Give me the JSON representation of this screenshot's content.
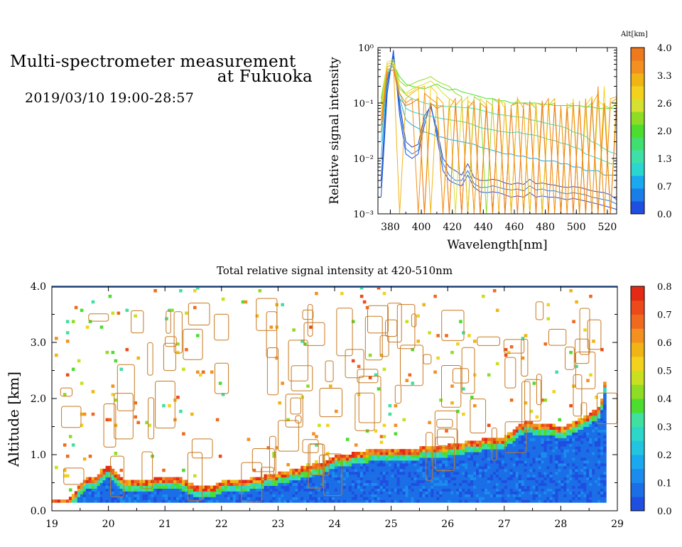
{
  "header": {
    "title_line1": "Multi-spectrometer measurement",
    "title_line2": "at Fukuoka",
    "datetime": "2019/03/10 19:00-28:57"
  },
  "chart_data": [
    {
      "type": "line",
      "xlabel": "Wavelength[nm]",
      "ylabel": "Relative signal intensity",
      "x_ticks": [
        "380",
        "400",
        "420",
        "440",
        "460",
        "480",
        "500",
        "520"
      ],
      "y_ticks": [
        "10⁻³",
        "10⁻²",
        "10⁻¹",
        "10⁰"
      ],
      "xlim": [
        372,
        526
      ],
      "ylim": [
        0.001,
        1.0
      ],
      "y_scale": "log",
      "colorbar": {
        "title": "Alt[km]",
        "ticks": [
          "0.0",
          "0.7",
          "1.3",
          "2.0",
          "2.6",
          "3.3",
          "4.0"
        ],
        "colors": [
          "#1f4fe0",
          "#1b7ee8",
          "#1aa9ef",
          "#2cd6d0",
          "#3fe0a8",
          "#3fe070",
          "#4cdd2e",
          "#8fdc24",
          "#d6e030",
          "#f2d21c",
          "#f0b414",
          "#f39020",
          "#ef7a1e"
        ]
      },
      "x": [
        374,
        378,
        382,
        386,
        390,
        394,
        398,
        402,
        406,
        410,
        414,
        418,
        422,
        426,
        430,
        434,
        438,
        442,
        446,
        450,
        454,
        458,
        462,
        466,
        470,
        474,
        478,
        482,
        486,
        490,
        494,
        498,
        502,
        506,
        510,
        514,
        518,
        522,
        526
      ],
      "series": [
        {
          "color": "#1f4fe0",
          "values": [
            0.002,
            0.15,
            0.9,
            0.06,
            0.012,
            0.01,
            0.012,
            0.04,
            0.1,
            0.025,
            0.006,
            0.004,
            0.0035,
            0.0032,
            0.005,
            0.003,
            0.0025,
            0.0024,
            0.0025,
            0.0024,
            0.0022,
            0.002,
            0.0021,
            0.002,
            0.0024,
            0.002,
            0.0021,
            0.002,
            0.002,
            0.0019,
            0.0018,
            0.0019,
            0.0018,
            0.0017,
            0.0016,
            0.0015,
            0.0014,
            0.0013,
            0.0012
          ]
        },
        {
          "color": "#1b7ee8",
          "values": [
            0.003,
            0.2,
            0.8,
            0.08,
            0.015,
            0.012,
            0.014,
            0.05,
            0.09,
            0.03,
            0.008,
            0.005,
            0.004,
            0.004,
            0.006,
            0.0035,
            0.003,
            0.003,
            0.0032,
            0.003,
            0.0028,
            0.0027,
            0.0028,
            0.0026,
            0.0032,
            0.0027,
            0.0028,
            0.0026,
            0.0026,
            0.0024,
            0.0023,
            0.0024,
            0.0023,
            0.0022,
            0.002,
            0.0019,
            0.0018,
            0.0017,
            0.0015
          ]
        },
        {
          "color": "#2a4bb8",
          "values": [
            0.004,
            0.25,
            0.7,
            0.1,
            0.02,
            0.016,
            0.018,
            0.06,
            0.085,
            0.035,
            0.01,
            0.007,
            0.006,
            0.005,
            0.008,
            0.0045,
            0.004,
            0.004,
            0.0042,
            0.004,
            0.0036,
            0.0034,
            0.0036,
            0.0034,
            0.0042,
            0.0035,
            0.0036,
            0.0034,
            0.0033,
            0.0031,
            0.003,
            0.0031,
            0.003,
            0.0028,
            0.0026,
            0.0025,
            0.0024,
            0.0022,
            0.0018
          ]
        },
        {
          "color": "#1aa9ef",
          "values": [
            0.01,
            0.3,
            0.6,
            0.12,
            0.05,
            0.04,
            0.035,
            0.03,
            0.028,
            0.025,
            0.024,
            0.022,
            0.021,
            0.02,
            0.019,
            0.018,
            0.016,
            0.015,
            0.014,
            0.013,
            0.012,
            0.012,
            0.011,
            0.011,
            0.01,
            0.01,
            0.009,
            0.009,
            0.009,
            0.008,
            0.008,
            0.007,
            0.007,
            0.006,
            0.006,
            0.006,
            0.005,
            0.005,
            0.005
          ]
        },
        {
          "color": "#2cd6d0",
          "values": [
            0.02,
            0.35,
            0.5,
            0.15,
            0.08,
            0.07,
            0.065,
            0.06,
            0.058,
            0.055,
            0.052,
            0.05,
            0.048,
            0.046,
            0.044,
            0.04,
            0.036,
            0.034,
            0.033,
            0.031,
            0.03,
            0.029,
            0.03,
            0.028,
            0.027,
            0.026,
            0.024,
            0.022,
            0.021,
            0.019,
            0.018,
            0.016,
            0.015,
            0.012,
            0.011,
            0.01,
            0.009,
            0.008,
            0.008
          ]
        },
        {
          "color": "#3fe0a8",
          "values": [
            0.05,
            0.4,
            0.45,
            0.2,
            0.14,
            0.12,
            0.11,
            0.1,
            0.095,
            0.09,
            0.088,
            0.086,
            0.085,
            0.083,
            0.082,
            0.08,
            0.075,
            0.07,
            0.065,
            0.062,
            0.06,
            0.058,
            0.056,
            0.055,
            0.05,
            0.048,
            0.045,
            0.042,
            0.04,
            0.038,
            0.035,
            0.03,
            0.028,
            0.025,
            0.02,
            0.018,
            0.015,
            0.013,
            0.012
          ]
        },
        {
          "color": "#4cdd2e",
          "values": [
            0.1,
            0.45,
            0.5,
            0.3,
            0.22,
            0.2,
            0.19,
            0.18,
            0.2,
            0.22,
            0.19,
            0.17,
            0.18,
            0.16,
            0.15,
            0.14,
            0.13,
            0.12,
            0.12,
            0.11,
            0.11,
            0.1,
            0.1,
            0.1,
            0.1,
            0.1,
            0.095,
            0.095,
            0.09,
            0.09,
            0.09,
            0.09,
            0.09,
            0.085,
            0.085,
            0.08,
            0.08,
            0.08,
            0.08
          ]
        },
        {
          "color": "#8fdc24",
          "values": [
            0.12,
            0.5,
            0.55,
            0.25,
            0.2,
            0.22,
            0.25,
            0.27,
            0.3,
            0.25,
            0.22,
            0.2,
            0.15,
            0.13,
            0.001,
            0.13,
            0.11,
            0.001,
            0.12,
            0.1,
            0.001,
            0.09,
            0.11,
            0.001,
            0.1,
            0.08,
            0.001,
            0.09,
            0.1,
            0.001,
            0.08,
            0.09,
            0.001,
            0.08,
            0.1,
            0.001,
            0.09,
            0.08,
            0.1
          ]
        },
        {
          "color": "#d6e030",
          "values": [
            0.08,
            0.55,
            0.6,
            0.2,
            0.15,
            0.18,
            0.2,
            0.22,
            0.25,
            0.2,
            0.15,
            0.12,
            0.001,
            0.1,
            0.13,
            0.001,
            0.12,
            0.09,
            0.001,
            0.11,
            0.1,
            0.001,
            0.12,
            0.08,
            0.001,
            0.1,
            0.09,
            0.001,
            0.1,
            0.001,
            0.09,
            0.1,
            0.001,
            0.08,
            0.001,
            0.11,
            0.09,
            0.001,
            0.12
          ]
        },
        {
          "color": "#f2d21c",
          "values": [
            0.06,
            0.5,
            0.55,
            0.18,
            0.14,
            0.16,
            0.2,
            0.001,
            0.2,
            0.15,
            0.001,
            0.12,
            0.1,
            0.001,
            0.11,
            0.09,
            0.001,
            0.1,
            0.001,
            0.12,
            0.08,
            0.001,
            0.13,
            0.001,
            0.1,
            0.09,
            0.001,
            0.11,
            0.001,
            0.08,
            0.001,
            0.12,
            0.001,
            0.09,
            0.13,
            0.001,
            0.2,
            0.001,
            0.15
          ]
        },
        {
          "color": "#f0b414",
          "values": [
            0.05,
            0.45,
            0.5,
            0.001,
            0.12,
            0.15,
            0.18,
            0.2,
            0.001,
            0.13,
            0.1,
            0.001,
            0.09,
            0.12,
            0.001,
            0.1,
            0.001,
            0.11,
            0.09,
            0.001,
            0.1,
            0.001,
            0.12,
            0.08,
            0.001,
            0.1,
            0.001,
            0.09,
            0.12,
            0.001,
            0.1,
            0.001,
            0.11,
            0.001,
            0.09,
            0.15,
            0.001,
            0.12,
            0.13
          ]
        },
        {
          "color": "#f39020",
          "values": [
            0.04,
            0.4,
            0.45,
            0.15,
            0.1,
            0.12,
            0.001,
            0.15,
            0.12,
            0.1,
            0.001,
            0.08,
            0.12,
            0.001,
            0.09,
            0.001,
            0.1,
            0.08,
            0.001,
            0.12,
            0.001,
            0.09,
            0.1,
            0.001,
            0.11,
            0.001,
            0.08,
            0.12,
            0.001,
            0.09,
            0.001,
            0.1,
            0.001,
            0.12,
            0.001,
            0.2,
            0.001,
            0.1,
            0.12
          ]
        },
        {
          "color": "#ef7a1e",
          "values": [
            0.03,
            0.35,
            0.4,
            0.12,
            0.09,
            0.1,
            0.12,
            0.001,
            0.1,
            0.08,
            0.09,
            0.001,
            0.1,
            0.001,
            0.08,
            0.11,
            0.001,
            0.09,
            0.001,
            0.1,
            0.001,
            0.08,
            0.001,
            0.1,
            0.09,
            0.001,
            0.11,
            0.001,
            0.1,
            0.001,
            0.08,
            0.001,
            0.09,
            0.001,
            0.12,
            0.001,
            0.1,
            0.001,
            0.09
          ]
        }
      ]
    },
    {
      "type": "heatmap",
      "title": "Total relative signal intensity at 420-510nm",
      "ylabel": "Altitude [km]",
      "xlabel": "",
      "x_ticks": [
        "19",
        "20",
        "21",
        "22",
        "23",
        "24",
        "25",
        "26",
        "27",
        "28",
        "29"
      ],
      "y_ticks": [
        "0.0",
        "1.0",
        "2.0",
        "3.0",
        "4.0"
      ],
      "xlim": [
        19,
        29
      ],
      "ylim": [
        0,
        4
      ],
      "colorbar": {
        "ticks": [
          "0.0",
          "0.1",
          "0.2",
          "0.3",
          "0.4",
          "0.5",
          "0.6",
          "0.7",
          "0.8"
        ],
        "colors": [
          "#1f4fe0",
          "#1b6ee6",
          "#1b8cee",
          "#1aa9ef",
          "#22c4e0",
          "#2cd6c8",
          "#3fe0a0",
          "#4cdd2e",
          "#8fdc24",
          "#c8e020",
          "#f2d21c",
          "#f0b414",
          "#f39020",
          "#ef6a1e",
          "#ec4a1a",
          "#e42a14"
        ]
      },
      "cloud_base_km": {
        "time_hr": [
          19.0,
          19.3,
          19.6,
          19.8,
          20.0,
          20.3,
          20.6,
          21.0,
          21.3,
          21.5,
          21.8,
          22.0,
          22.5,
          23.0,
          23.3,
          23.6,
          23.8,
          24.0,
          24.3,
          24.6,
          25.0,
          25.5,
          26.0,
          26.3,
          26.6,
          27.0,
          27.2,
          27.4,
          27.6,
          27.8,
          28.0,
          28.3,
          28.5,
          28.7,
          28.8
        ],
        "values": [
          0.2,
          0.2,
          0.55,
          0.6,
          0.8,
          0.5,
          0.5,
          0.6,
          0.55,
          0.45,
          0.4,
          0.5,
          0.55,
          0.65,
          0.72,
          0.8,
          0.85,
          0.95,
          1.0,
          1.05,
          1.1,
          1.1,
          1.15,
          1.2,
          1.25,
          1.3,
          1.45,
          1.6,
          1.5,
          1.55,
          1.45,
          1.6,
          1.7,
          1.85,
          2.4
        ]
      }
    }
  ]
}
